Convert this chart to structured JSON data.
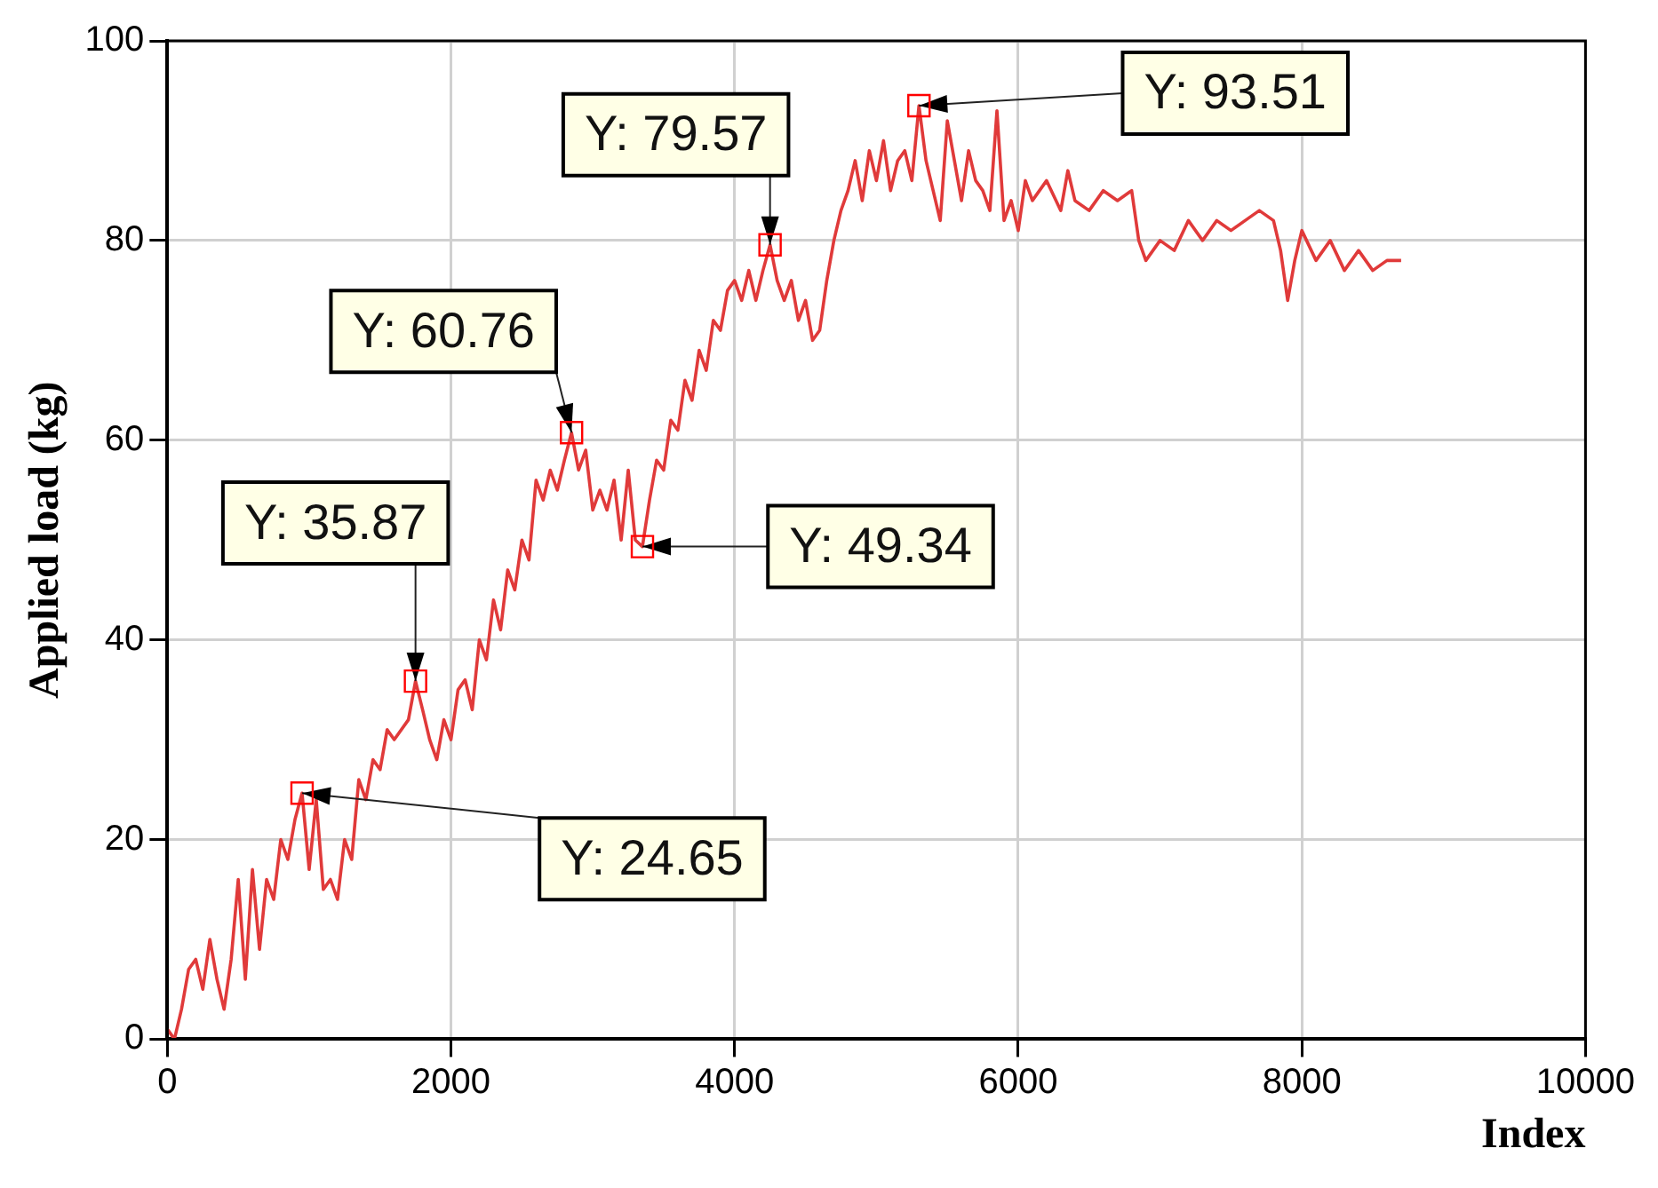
{
  "chart_data": {
    "type": "line",
    "xlabel": "Index",
    "ylabel": "Applied load (kg)",
    "xlim": [
      0,
      10000
    ],
    "xticks": [
      0,
      2000,
      4000,
      6000,
      8000,
      10000
    ],
    "ylim": [
      0,
      100
    ],
    "yticks": [
      0,
      20,
      40,
      60,
      80,
      100
    ],
    "grid": true,
    "marker": "none",
    "line_style": "solid",
    "series": [
      {
        "color": "#e03a3a",
        "x": [
          0,
          50,
          100,
          150,
          200,
          250,
          300,
          350,
          400,
          450,
          500,
          550,
          600,
          650,
          700,
          750,
          800,
          850,
          900,
          950,
          1000,
          1050,
          1100,
          1150,
          1200,
          1250,
          1300,
          1350,
          1400,
          1450,
          1500,
          1550,
          1600,
          1700,
          1750,
          1800,
          1850,
          1900,
          1950,
          2000,
          2050,
          2100,
          2150,
          2200,
          2250,
          2300,
          2350,
          2400,
          2450,
          2500,
          2550,
          2600,
          2650,
          2700,
          2750,
          2800,
          2850,
          2900,
          2950,
          3000,
          3050,
          3100,
          3150,
          3200,
          3250,
          3300,
          3350,
          3400,
          3450,
          3500,
          3550,
          3600,
          3650,
          3700,
          3750,
          3800,
          3850,
          3900,
          3950,
          4000,
          4050,
          4100,
          4150,
          4200,
          4250,
          4300,
          4350,
          4400,
          4450,
          4500,
          4550,
          4600,
          4650,
          4700,
          4750,
          4800,
          4850,
          4900,
          4950,
          5000,
          5050,
          5100,
          5150,
          5200,
          5250,
          5300,
          5350,
          5400,
          5450,
          5500,
          5550,
          5600,
          5650,
          5700,
          5750,
          5800,
          5850,
          5900,
          5950,
          6000,
          6050,
          6100,
          6200,
          6300,
          6350,
          6400,
          6500,
          6600,
          6700,
          6800,
          6850,
          6900,
          7000,
          7100,
          7200,
          7300,
          7400,
          7500,
          7600,
          7700,
          7800,
          7850,
          7900,
          7950,
          8000,
          8100,
          8200,
          8300,
          8400,
          8500,
          8600,
          8700
        ],
        "values": [
          1,
          0,
          3,
          7,
          8,
          5,
          10,
          6,
          3,
          8,
          16,
          6,
          17,
          9,
          16,
          14,
          20,
          18,
          22,
          24.65,
          17,
          24,
          15,
          16,
          14,
          20,
          18,
          26,
          24,
          28,
          27,
          31,
          30,
          32,
          35.87,
          33,
          30,
          28,
          32,
          30,
          35,
          36,
          33,
          40,
          38,
          44,
          41,
          47,
          45,
          50,
          48,
          56,
          54,
          57,
          55,
          58,
          60.76,
          57,
          59,
          53,
          55,
          53,
          56,
          50,
          57,
          50,
          49.34,
          54,
          58,
          57,
          62,
          61,
          66,
          64,
          69,
          67,
          72,
          71,
          75,
          76,
          74,
          77,
          74,
          77,
          79.57,
          76,
          74,
          76,
          72,
          74,
          70,
          71,
          76,
          80,
          83,
          85,
          88,
          84,
          89,
          86,
          90,
          85,
          88,
          89,
          86,
          93.51,
          88,
          85,
          82,
          92,
          88,
          84,
          89,
          86,
          85,
          83,
          93,
          82,
          84,
          81,
          86,
          84,
          86,
          83,
          87,
          84,
          83,
          85,
          84,
          85,
          80,
          78,
          80,
          79,
          82,
          80,
          82,
          81,
          82,
          83,
          82,
          79,
          74,
          78,
          81,
          78,
          80,
          77,
          79,
          77,
          78,
          78
        ]
      }
    ],
    "annotations": [
      {
        "text": "Y: 24.65",
        "x": 950,
        "y": 24.65
      },
      {
        "text": "Y: 35.87",
        "x": 1750,
        "y": 35.87
      },
      {
        "text": "Y: 60.76",
        "x": 2850,
        "y": 60.76
      },
      {
        "text": "Y: 49.34",
        "x": 3350,
        "y": 49.34
      },
      {
        "text": "Y: 79.57",
        "x": 4250,
        "y": 79.57
      },
      {
        "text": "Y: 93.51",
        "x": 5300,
        "y": 93.51
      }
    ]
  }
}
